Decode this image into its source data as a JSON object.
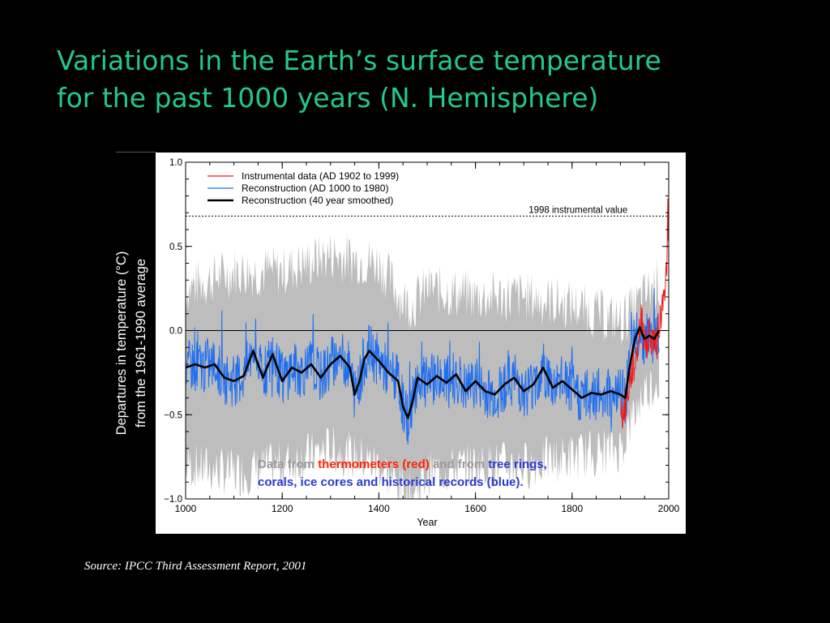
{
  "title": {
    "line1": "Variations in the Earth’s surface temperature",
    "line2": "for the past 1000 years (N. Hemisphere)"
  },
  "y_axis_title": {
    "line1": "Departures in temperature (°C)",
    "line2": "from the 1961-1990 average"
  },
  "annotation": {
    "part1": "Data from ",
    "part2": "thermometers (red)",
    "part3": " and from ",
    "part4": "tree rings,",
    "part5": "corals, ice cores and historical records (blue)."
  },
  "source": "Source: IPCC Third Assessment Report, 2001",
  "colors": {
    "title": "#22c98a",
    "instrumental": "#ee1c1c",
    "reconstruction": "#1e6ff2",
    "smoothed": "#000000",
    "uncertainty": "#bdbdbd"
  },
  "chart_data": {
    "type": "line",
    "title": "",
    "xlabel": "Year",
    "ylabel": "",
    "xlim": [
      1000,
      2000
    ],
    "ylim": [
      -1.0,
      1.0
    ],
    "x_ticks": [
      1000,
      1200,
      1400,
      1600,
      1800,
      2000
    ],
    "y_ticks": [
      1.0,
      0.5,
      0.0,
      -0.5,
      -1.0
    ],
    "y_tick_labels": [
      "1.0",
      "0.5",
      "0.0",
      "−0.5",
      "−1.0"
    ],
    "reference_line": {
      "label": "1998 instrumental value",
      "y": 0.68
    },
    "zero_line": 0.0,
    "legend": {
      "placement": "top-left",
      "entries": [
        "Instrumental data (AD 1902 to 1999)",
        "Reconstruction (AD 1000 to 1980)",
        "Reconstruction (40 year smoothed)"
      ]
    },
    "series": [
      {
        "name": "Reconstruction (40 year smoothed)",
        "x": [
          1000,
          1020,
          1040,
          1060,
          1080,
          1100,
          1120,
          1140,
          1160,
          1180,
          1200,
          1220,
          1240,
          1260,
          1280,
          1300,
          1320,
          1340,
          1350,
          1360,
          1370,
          1380,
          1400,
          1420,
          1440,
          1450,
          1460,
          1470,
          1480,
          1500,
          1520,
          1540,
          1560,
          1580,
          1600,
          1620,
          1640,
          1660,
          1680,
          1700,
          1720,
          1740,
          1760,
          1780,
          1800,
          1820,
          1840,
          1860,
          1880,
          1900,
          1910,
          1920,
          1930,
          1940,
          1950,
          1960,
          1970,
          1980
        ],
        "values": [
          -0.22,
          -0.2,
          -0.22,
          -0.2,
          -0.28,
          -0.3,
          -0.27,
          -0.12,
          -0.28,
          -0.14,
          -0.3,
          -0.22,
          -0.25,
          -0.2,
          -0.28,
          -0.2,
          -0.15,
          -0.22,
          -0.38,
          -0.3,
          -0.17,
          -0.12,
          -0.18,
          -0.25,
          -0.3,
          -0.45,
          -0.52,
          -0.42,
          -0.28,
          -0.32,
          -0.27,
          -0.31,
          -0.26,
          -0.36,
          -0.3,
          -0.36,
          -0.38,
          -0.32,
          -0.28,
          -0.36,
          -0.32,
          -0.22,
          -0.34,
          -0.3,
          -0.35,
          -0.4,
          -0.37,
          -0.38,
          -0.36,
          -0.38,
          -0.4,
          -0.2,
          -0.05,
          0.02,
          -0.05,
          -0.03,
          -0.05,
          0.0
        ]
      },
      {
        "name": "Reconstruction (AD 1000 to 1980)",
        "x_range": [
          1000,
          1980
        ],
        "note_values_from": "same trend as smoothed, with interannual variability of about ±0.2",
        "values": []
      },
      {
        "name": "Instrumental data (AD 1902 to 1999)",
        "x": [
          1902,
          1905,
          1910,
          1915,
          1920,
          1925,
          1930,
          1935,
          1940,
          1945,
          1950,
          1955,
          1960,
          1965,
          1970,
          1975,
          1980,
          1985,
          1990,
          1993,
          1995,
          1997,
          1998,
          1999
        ],
        "values": [
          -0.45,
          -0.5,
          -0.45,
          -0.38,
          -0.3,
          -0.22,
          -0.2,
          -0.1,
          0.02,
          0.08,
          -0.05,
          -0.1,
          0.0,
          -0.05,
          -0.05,
          -0.1,
          0.05,
          0.1,
          0.3,
          0.2,
          0.38,
          0.45,
          0.68,
          0.52
        ]
      },
      {
        "name": "Uncertainty band",
        "x": [
          1000,
          1100,
          1200,
          1300,
          1400,
          1450,
          1470,
          1500,
          1600,
          1700,
          1800,
          1900,
          1950,
          1980
        ],
        "upper": [
          0.25,
          0.35,
          0.35,
          0.45,
          0.4,
          0.18,
          0.15,
          0.25,
          0.2,
          0.2,
          0.15,
          0.05,
          0.2,
          0.3
        ],
        "lower": [
          -0.8,
          -0.85,
          -0.8,
          -0.7,
          -0.8,
          -0.95,
          -0.98,
          -0.85,
          -0.8,
          -0.8,
          -0.75,
          -0.7,
          -0.35,
          -0.3
        ]
      }
    ]
  }
}
